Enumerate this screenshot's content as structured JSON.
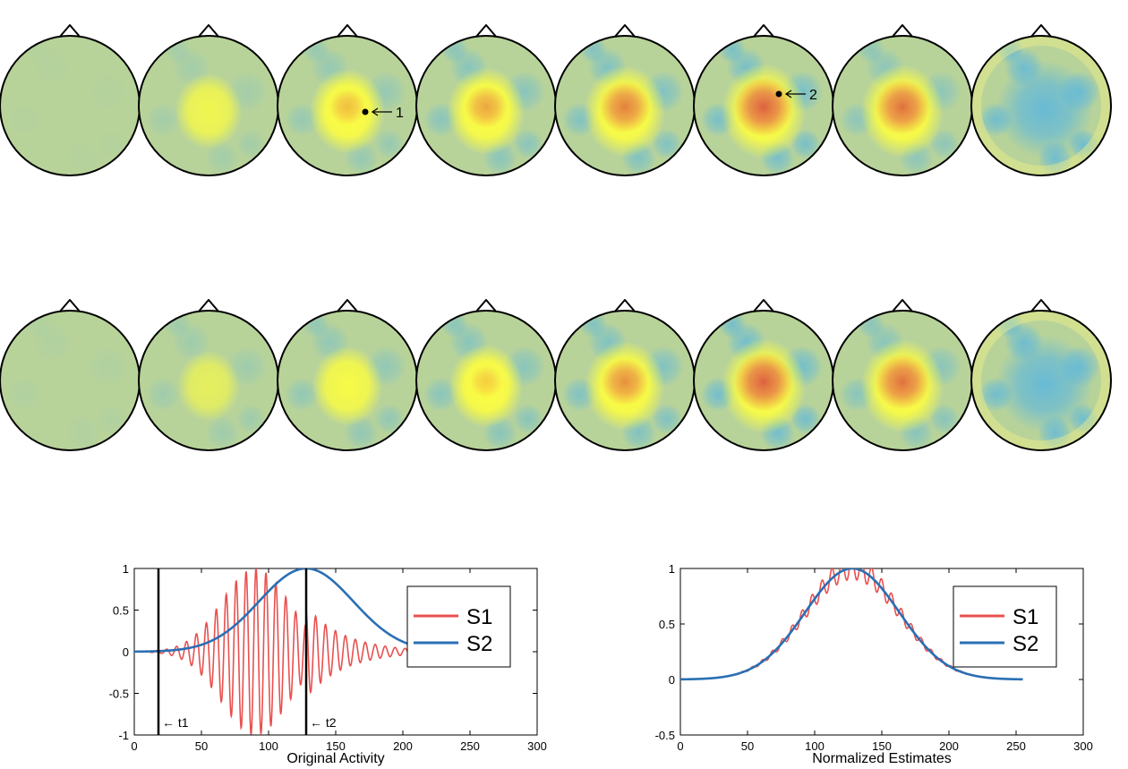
{
  "topomaps": {
    "row1_markers": [
      {
        "map": 3,
        "label": "1"
      },
      {
        "map": 6,
        "label": "2"
      }
    ],
    "rows": [
      [
        {
          "blob": 0.0,
          "blue": 0.05
        },
        {
          "blob": 0.45,
          "blue": 0.25
        },
        {
          "blob": 0.7,
          "blue": 0.4
        },
        {
          "blob": 0.78,
          "blue": 0.55
        },
        {
          "blob": 0.9,
          "blue": 0.65
        },
        {
          "blob": 1.0,
          "blue": 0.75
        },
        {
          "blob": 0.95,
          "blue": 0.5
        },
        {
          "blob": 0.0,
          "blue": 0.85
        }
      ],
      [
        {
          "blob": 0.0,
          "blue": 0.1
        },
        {
          "blob": 0.3,
          "blue": 0.3
        },
        {
          "blob": 0.55,
          "blue": 0.45
        },
        {
          "blob": 0.65,
          "blue": 0.55
        },
        {
          "blob": 0.85,
          "blue": 0.65
        },
        {
          "blob": 1.0,
          "blue": 0.8
        },
        {
          "blob": 0.95,
          "blue": 0.55
        },
        {
          "blob": 0.0,
          "blue": 0.85
        }
      ]
    ],
    "colors": {
      "green": "#b8d39a",
      "blue": "#5ab6e0",
      "yellow": "#ffff3c",
      "red": "#e0504a"
    }
  },
  "chart_data": [
    {
      "type": "line",
      "xlabel": "Original Activity",
      "ylabel": "",
      "xlim": [
        0,
        300
      ],
      "ylim": [
        -1,
        1
      ],
      "xticks": [
        "0",
        "50",
        "100",
        "150",
        "200",
        "250",
        "300"
      ],
      "yticks": [
        "1",
        "0.5",
        "0",
        "-0.5",
        "-1"
      ],
      "legend": {
        "position": "top-right",
        "entries": [
          "S1",
          "S2"
        ]
      },
      "series": [
        {
          "name": "S1",
          "color": "#e8514f",
          "kind": "windowed-sinusoid",
          "x_range": [
            0,
            205
          ],
          "envelope_peak_x": 90,
          "envelope_sd": 25,
          "period": 7.4,
          "amplitude": 1.0
        },
        {
          "name": "S2",
          "color": "#2a6fb4",
          "kind": "gaussian",
          "x_range": [
            0,
            205
          ],
          "peak_x": 128,
          "sd": 35,
          "amplitude": 1.0
        }
      ],
      "vlines": [
        {
          "x": 18,
          "label": "← t1"
        },
        {
          "x": 128,
          "label": "← t2"
        }
      ]
    },
    {
      "type": "line",
      "xlabel": "Normalized Estimates",
      "ylabel": "",
      "xlim": [
        0,
        300
      ],
      "ylim": [
        -0.5,
        1
      ],
      "xticks": [
        "0",
        "50",
        "100",
        "150",
        "200",
        "250",
        "300"
      ],
      "yticks": [
        "1",
        "0.5",
        "0",
        "-0.5"
      ],
      "legend": {
        "position": "top-right",
        "entries": [
          "S1",
          "S2"
        ]
      },
      "series": [
        {
          "name": "S1",
          "color": "#e8514f",
          "kind": "gaussian-plus-ripple",
          "x_range": [
            0,
            255
          ],
          "peak_x": 128,
          "sd": 35,
          "ripple_amp": 0.1,
          "period": 7.4
        },
        {
          "name": "S2",
          "color": "#2a6fb4",
          "kind": "gaussian",
          "x_range": [
            0,
            255
          ],
          "peak_x": 128,
          "sd": 35,
          "amplitude": 1.0
        }
      ]
    }
  ]
}
